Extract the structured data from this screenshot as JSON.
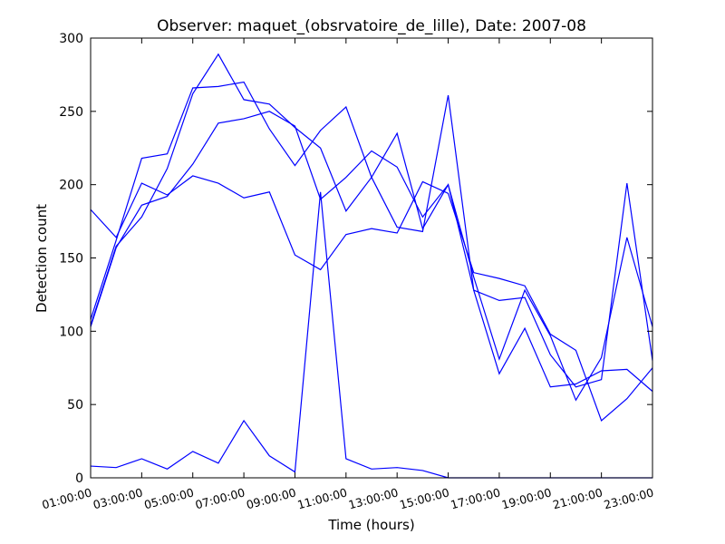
{
  "chart_data": {
    "type": "line",
    "title": "Observer: maquet_(obsrvatoire_de_lille), Date: 2007-08",
    "x_label": "Time (hours)",
    "y_label": "Detection count",
    "x": [
      0,
      1,
      2,
      3,
      4,
      5,
      6,
      7,
      8,
      9,
      10,
      11,
      12,
      13,
      14,
      15,
      16,
      17,
      18,
      19,
      20,
      21,
      22
    ],
    "xlim": [
      0,
      22
    ],
    "xticks": [
      {
        "value": 0,
        "label": "01:00:00"
      },
      {
        "value": 2,
        "label": "03:00:00"
      },
      {
        "value": 4,
        "label": "05:00:00"
      },
      {
        "value": 6,
        "label": "07:00:00"
      },
      {
        "value": 8,
        "label": "09:00:00"
      },
      {
        "value": 10,
        "label": "11:00:00"
      },
      {
        "value": 12,
        "label": "13:00:00"
      },
      {
        "value": 14,
        "label": "15:00:00"
      },
      {
        "value": 16,
        "label": "17:00:00"
      },
      {
        "value": 18,
        "label": "19:00:00"
      },
      {
        "value": 20,
        "label": "21:00:00"
      },
      {
        "value": 22,
        "label": "23:00:00"
      }
    ],
    "ylim": [
      0,
      300
    ],
    "yticks": [
      0,
      50,
      100,
      150,
      200,
      250,
      300
    ],
    "series": [
      {
        "color": "#0000ff",
        "values": [
          108,
          162,
          218,
          221,
          266,
          267,
          270,
          238,
          213,
          237,
          253,
          205,
          171,
          168,
          261,
          128,
          121,
          123,
          84,
          62,
          67,
          201,
          80
        ]
      },
      {
        "color": "#0000ff",
        "values": [
          8,
          7,
          13,
          6,
          18,
          10,
          39,
          15,
          4,
          195,
          13,
          6,
          7,
          5,
          0,
          0,
          0,
          0,
          0,
          0,
          0,
          0,
          0
        ]
      },
      {
        "color": "#0000ff",
        "values": [
          183,
          164,
          201,
          193,
          206,
          201,
          191,
          195,
          152,
          142,
          166,
          170,
          167,
          202,
          194,
          140,
          136,
          131,
          98,
          87,
          39,
          54,
          75
        ]
      },
      {
        "color": "#0000ff",
        "values": [
          104,
          158,
          178,
          211,
          262,
          289,
          258,
          255,
          239,
          225,
          182,
          205,
          235,
          170,
          200,
          137,
          81,
          128,
          97,
          53,
          82,
          164,
          103
        ]
      },
      {
        "color": "#0000ff",
        "values": [
          103,
          157,
          186,
          192,
          214,
          242,
          245,
          250,
          240,
          190,
          205,
          223,
          212,
          178,
          200,
          128,
          71,
          102,
          62,
          64,
          73,
          74,
          59
        ]
      }
    ]
  }
}
